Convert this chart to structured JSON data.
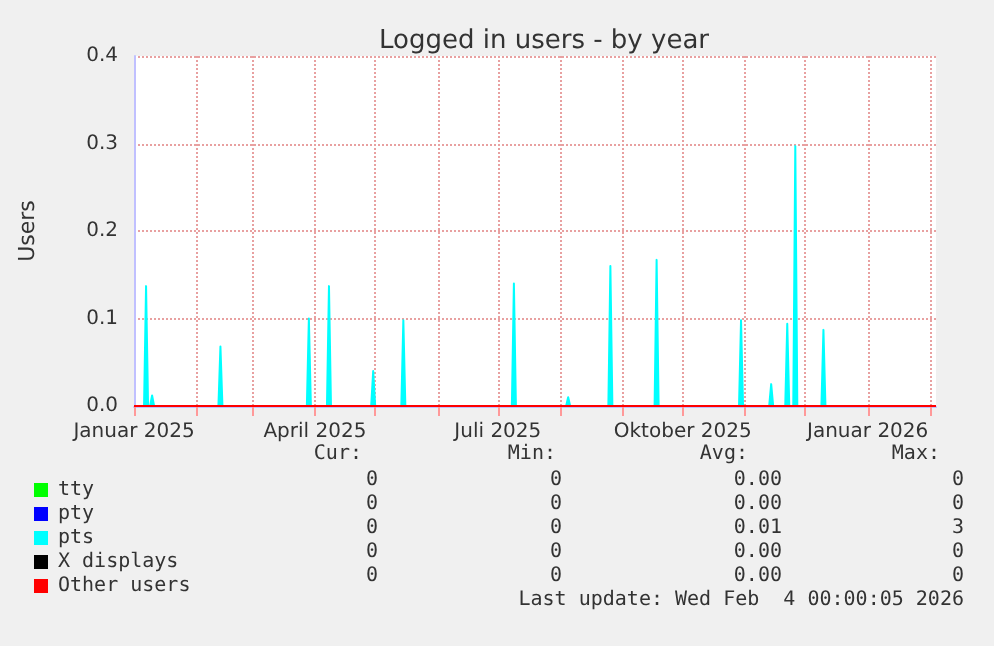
{
  "chart_data": {
    "type": "area",
    "title": "Logged in users - by year",
    "ylabel": "Users",
    "xlim": [
      "2025-01-01",
      "2026-02-04"
    ],
    "xticks": [
      {
        "value": "2025-01-01",
        "label": "Januar 2025"
      },
      {
        "value": "2025-02-01",
        "label": null
      },
      {
        "value": "2025-03-01",
        "label": null
      },
      {
        "value": "2025-04-01",
        "label": "April 2025"
      },
      {
        "value": "2025-05-01",
        "label": null
      },
      {
        "value": "2025-06-01",
        "label": null
      },
      {
        "value": "2025-07-01",
        "label": "Juli 2025"
      },
      {
        "value": "2025-08-01",
        "label": null
      },
      {
        "value": "2025-09-01",
        "label": null
      },
      {
        "value": "2025-10-01",
        "label": "Oktober 2025"
      },
      {
        "value": "2025-11-01",
        "label": null
      },
      {
        "value": "2025-12-01",
        "label": null
      },
      {
        "value": "2026-01-01",
        "label": "Januar 2026"
      },
      {
        "value": "2026-02-01",
        "label": null
      }
    ],
    "ylim": [
      0,
      0.4
    ],
    "yticks": [
      {
        "value": 0,
        "label": "0.0"
      },
      0.1,
      0.2,
      0.3,
      0.4
    ],
    "grid": true,
    "legend": "bottom left",
    "marker": "none",
    "series": [
      {
        "name": "tty",
        "type": "line",
        "color": "#00ff00"
      },
      {
        "name": "pty",
        "type": "line",
        "color": "#0000ff"
      },
      {
        "name": "pts",
        "color": "#00ffff",
        "x": [
          "2025-01-06",
          "2025-01-07",
          "2025-01-08",
          "2025-01-09",
          "2025-01-10",
          "2025-01-11",
          "2025-02-12",
          "2025-02-13",
          "2025-02-14",
          "2025-03-28",
          "2025-03-29",
          "2025-03-30",
          "2025-04-07",
          "2025-04-08",
          "2025-04-09",
          "2025-04-29",
          "2025-04-30",
          "2025-05-01",
          "2025-05-14",
          "2025-05-15",
          "2025-05-16",
          "2025-07-08",
          "2025-07-09",
          "2025-07-10",
          "2025-08-04",
          "2025-08-05",
          "2025-08-06",
          "2025-08-25",
          "2025-08-26",
          "2025-08-27",
          "2025-09-17",
          "2025-09-18",
          "2025-09-19",
          "2025-10-29",
          "2025-10-30",
          "2025-10-31",
          "2025-11-13",
          "2025-11-14",
          "2025-11-15",
          "2025-11-21",
          "2025-11-22",
          "2025-11-23",
          "2025-11-25",
          "2025-11-26",
          "2025-11-27",
          "2025-12-09",
          "2025-12-10",
          "2025-12-11"
        ],
        "values": [
          0,
          0.137,
          0,
          0,
          0.012,
          0,
          0,
          0.068,
          0,
          0,
          0.1,
          0,
          0,
          0.137,
          0,
          0,
          0.04,
          0,
          0,
          0.098,
          0,
          0,
          0.14,
          0,
          0,
          0.01,
          0,
          0,
          0.16,
          0,
          0,
          0.167,
          0,
          0,
          0.098,
          0,
          0,
          0.025,
          0,
          0,
          0.094,
          0,
          0,
          0.297,
          0,
          0,
          0.087,
          0
        ]
      },
      {
        "name": "X displays",
        "type": "line",
        "color": "#000000"
      },
      {
        "name": "Other users",
        "type": "line",
        "color": "#ff0000",
        "x": [
          "2025-01-01",
          "2026-02-04"
        ],
        "values": [
          0,
          0
        ]
      }
    ],
    "annotations": [
      "Cur:",
      "Min:",
      "Avg:",
      "Max:",
      "0",
      "0",
      "0.00",
      "0",
      "0",
      "0",
      "0.00",
      "0",
      "0",
      "0",
      "0.01",
      "3",
      "0",
      "0",
      "0.00",
      "0",
      "0",
      "0",
      "0.00",
      "0",
      "Last update: Wed Feb  4 00:00:05 2026"
    ]
  }
}
